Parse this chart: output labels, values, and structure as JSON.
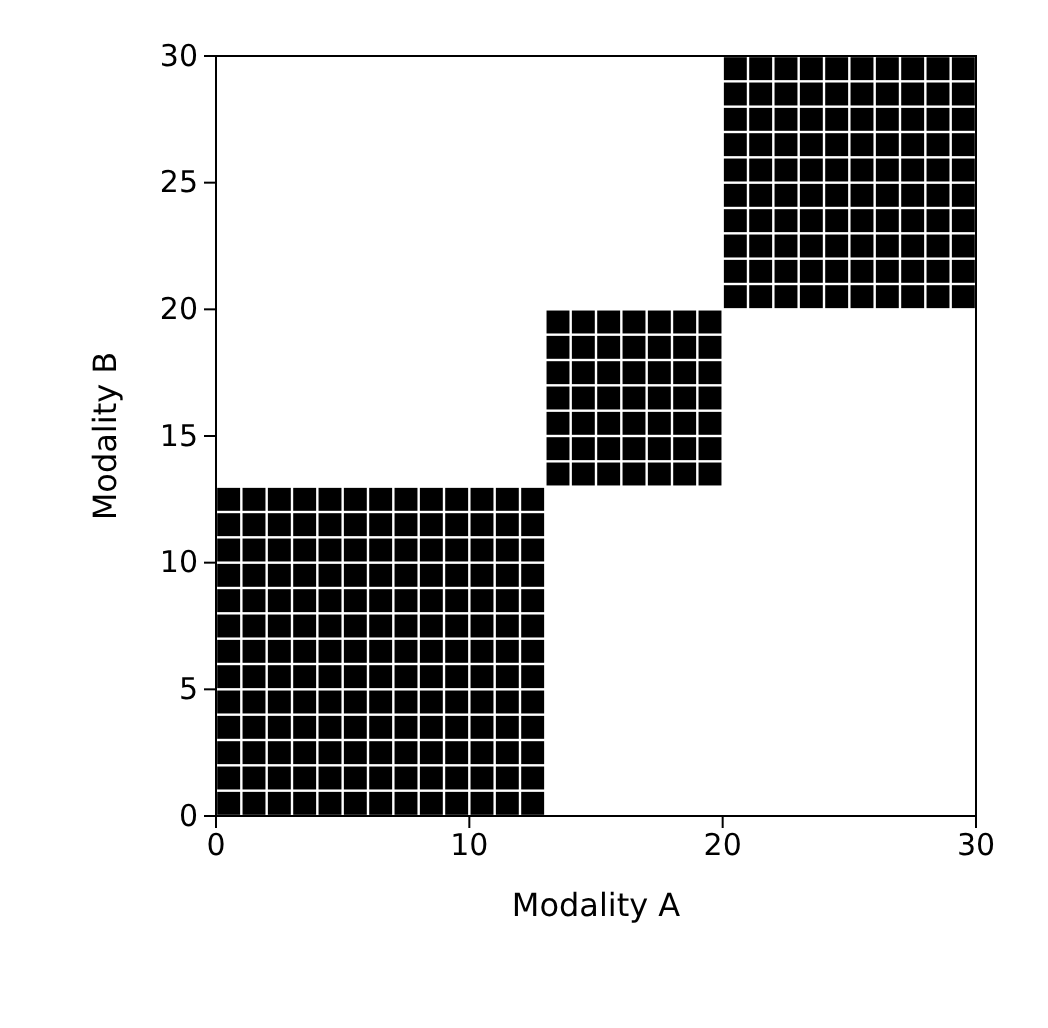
{
  "chart_data": {
    "type": "scatter",
    "xlabel": "Modality A",
    "ylabel": "Modality B",
    "marker": "square",
    "xlim": [
      0,
      30
    ],
    "xticks": [
      0,
      10,
      20,
      30
    ],
    "ylim": [
      0,
      30
    ],
    "yticks": [
      0,
      5,
      10,
      15,
      20,
      25,
      30
    ],
    "series": [
      {
        "color": "#000000",
        "x": [
          0.5,
          1.5,
          2.5,
          3.5,
          4.5,
          5.5,
          6.5,
          7.5,
          8.5,
          9.5,
          10.5,
          11.5,
          12.5,
          0.5,
          1.5,
          2.5,
          3.5,
          4.5,
          5.5,
          6.5,
          7.5,
          8.5,
          9.5,
          10.5,
          11.5,
          12.5,
          0.5,
          1.5,
          2.5,
          3.5,
          4.5,
          5.5,
          6.5,
          7.5,
          8.5,
          9.5,
          10.5,
          11.5,
          12.5,
          0.5,
          1.5,
          2.5,
          3.5,
          4.5,
          5.5,
          6.5,
          7.5,
          8.5,
          9.5,
          10.5,
          11.5,
          12.5,
          0.5,
          1.5,
          2.5,
          3.5,
          4.5,
          5.5,
          6.5,
          7.5,
          8.5,
          9.5,
          10.5,
          11.5,
          12.5,
          0.5,
          1.5,
          2.5,
          3.5,
          4.5,
          5.5,
          6.5,
          7.5,
          8.5,
          9.5,
          10.5,
          11.5,
          12.5,
          0.5,
          1.5,
          2.5,
          3.5,
          4.5,
          5.5,
          6.5,
          7.5,
          8.5,
          9.5,
          10.5,
          11.5,
          12.5,
          0.5,
          1.5,
          2.5,
          3.5,
          4.5,
          5.5,
          6.5,
          7.5,
          8.5,
          9.5,
          10.5,
          11.5,
          12.5,
          0.5,
          1.5,
          2.5,
          3.5,
          4.5,
          5.5,
          6.5,
          7.5,
          8.5,
          9.5,
          10.5,
          11.5,
          12.5,
          0.5,
          1.5,
          2.5,
          3.5,
          4.5,
          5.5,
          6.5,
          7.5,
          8.5,
          9.5,
          10.5,
          11.5,
          12.5,
          0.5,
          1.5,
          2.5,
          3.5,
          4.5,
          5.5,
          6.5,
          7.5,
          8.5,
          9.5,
          10.5,
          11.5,
          12.5,
          0.5,
          1.5,
          2.5,
          3.5,
          4.5,
          5.5,
          6.5,
          7.5,
          8.5,
          9.5,
          10.5,
          11.5,
          12.5,
          0.5,
          1.5,
          2.5,
          3.5,
          4.5,
          5.5,
          6.5,
          7.5,
          8.5,
          9.5,
          10.5,
          11.5,
          12.5
        ],
        "values": [
          0.5,
          0.5,
          0.5,
          0.5,
          0.5,
          0.5,
          0.5,
          0.5,
          0.5,
          0.5,
          0.5,
          0.5,
          0.5,
          1.5,
          1.5,
          1.5,
          1.5,
          1.5,
          1.5,
          1.5,
          1.5,
          1.5,
          1.5,
          1.5,
          1.5,
          1.5,
          2.5,
          2.5,
          2.5,
          2.5,
          2.5,
          2.5,
          2.5,
          2.5,
          2.5,
          2.5,
          2.5,
          2.5,
          2.5,
          3.5,
          3.5,
          3.5,
          3.5,
          3.5,
          3.5,
          3.5,
          3.5,
          3.5,
          3.5,
          3.5,
          3.5,
          3.5,
          4.5,
          4.5,
          4.5,
          4.5,
          4.5,
          4.5,
          4.5,
          4.5,
          4.5,
          4.5,
          4.5,
          4.5,
          4.5,
          5.5,
          5.5,
          5.5,
          5.5,
          5.5,
          5.5,
          5.5,
          5.5,
          5.5,
          5.5,
          5.5,
          5.5,
          5.5,
          6.5,
          6.5,
          6.5,
          6.5,
          6.5,
          6.5,
          6.5,
          6.5,
          6.5,
          6.5,
          6.5,
          6.5,
          6.5,
          7.5,
          7.5,
          7.5,
          7.5,
          7.5,
          7.5,
          7.5,
          7.5,
          7.5,
          7.5,
          7.5,
          7.5,
          7.5,
          8.5,
          8.5,
          8.5,
          8.5,
          8.5,
          8.5,
          8.5,
          8.5,
          8.5,
          8.5,
          8.5,
          8.5,
          8.5,
          9.5,
          9.5,
          9.5,
          9.5,
          9.5,
          9.5,
          9.5,
          9.5,
          9.5,
          9.5,
          9.5,
          9.5,
          9.5,
          10.5,
          10.5,
          10.5,
          10.5,
          10.5,
          10.5,
          10.5,
          10.5,
          10.5,
          10.5,
          10.5,
          10.5,
          10.5,
          11.5,
          11.5,
          11.5,
          11.5,
          11.5,
          11.5,
          11.5,
          11.5,
          11.5,
          11.5,
          11.5,
          11.5,
          11.5,
          12.5,
          12.5,
          12.5,
          12.5,
          12.5,
          12.5,
          12.5,
          12.5,
          12.5,
          12.5,
          12.5,
          12.5,
          12.5
        ]
      },
      {
        "color": "#000000",
        "x": [
          13.5,
          14.5,
          15.5,
          16.5,
          17.5,
          18.5,
          19.5,
          13.5,
          14.5,
          15.5,
          16.5,
          17.5,
          18.5,
          19.5,
          13.5,
          14.5,
          15.5,
          16.5,
          17.5,
          18.5,
          19.5,
          13.5,
          14.5,
          15.5,
          16.5,
          17.5,
          18.5,
          19.5,
          13.5,
          14.5,
          15.5,
          16.5,
          17.5,
          18.5,
          19.5,
          13.5,
          14.5,
          15.5,
          16.5,
          17.5,
          18.5,
          19.5,
          13.5,
          14.5,
          15.5,
          16.5,
          17.5,
          18.5,
          19.5
        ],
        "values": [
          13.5,
          13.5,
          13.5,
          13.5,
          13.5,
          13.5,
          13.5,
          14.5,
          14.5,
          14.5,
          14.5,
          14.5,
          14.5,
          14.5,
          15.5,
          15.5,
          15.5,
          15.5,
          15.5,
          15.5,
          15.5,
          16.5,
          16.5,
          16.5,
          16.5,
          16.5,
          16.5,
          16.5,
          17.5,
          17.5,
          17.5,
          17.5,
          17.5,
          17.5,
          17.5,
          18.5,
          18.5,
          18.5,
          18.5,
          18.5,
          18.5,
          18.5,
          19.5,
          19.5,
          19.5,
          19.5,
          19.5,
          19.5,
          19.5
        ]
      },
      {
        "color": "#000000",
        "x": [
          20.5,
          21.5,
          22.5,
          23.5,
          24.5,
          25.5,
          26.5,
          27.5,
          28.5,
          29.5,
          20.5,
          21.5,
          22.5,
          23.5,
          24.5,
          25.5,
          26.5,
          27.5,
          28.5,
          29.5,
          20.5,
          21.5,
          22.5,
          23.5,
          24.5,
          25.5,
          26.5,
          27.5,
          28.5,
          29.5,
          20.5,
          21.5,
          22.5,
          23.5,
          24.5,
          25.5,
          26.5,
          27.5,
          28.5,
          29.5,
          20.5,
          21.5,
          22.5,
          23.5,
          24.5,
          25.5,
          26.5,
          27.5,
          28.5,
          29.5,
          20.5,
          21.5,
          22.5,
          23.5,
          24.5,
          25.5,
          26.5,
          27.5,
          28.5,
          29.5,
          20.5,
          21.5,
          22.5,
          23.5,
          24.5,
          25.5,
          26.5,
          27.5,
          28.5,
          29.5,
          20.5,
          21.5,
          22.5,
          23.5,
          24.5,
          25.5,
          26.5,
          27.5,
          28.5,
          29.5,
          20.5,
          21.5,
          22.5,
          23.5,
          24.5,
          25.5,
          26.5,
          27.5,
          28.5,
          29.5,
          20.5,
          21.5,
          22.5,
          23.5,
          24.5,
          25.5,
          26.5,
          27.5,
          28.5,
          29.5
        ],
        "values": [
          20.5,
          20.5,
          20.5,
          20.5,
          20.5,
          20.5,
          20.5,
          20.5,
          20.5,
          20.5,
          21.5,
          21.5,
          21.5,
          21.5,
          21.5,
          21.5,
          21.5,
          21.5,
          21.5,
          21.5,
          22.5,
          22.5,
          22.5,
          22.5,
          22.5,
          22.5,
          22.5,
          22.5,
          22.5,
          22.5,
          23.5,
          23.5,
          23.5,
          23.5,
          23.5,
          23.5,
          23.5,
          23.5,
          23.5,
          23.5,
          24.5,
          24.5,
          24.5,
          24.5,
          24.5,
          24.5,
          24.5,
          24.5,
          24.5,
          24.5,
          25.5,
          25.5,
          25.5,
          25.5,
          25.5,
          25.5,
          25.5,
          25.5,
          25.5,
          25.5,
          26.5,
          26.5,
          26.5,
          26.5,
          26.5,
          26.5,
          26.5,
          26.5,
          26.5,
          26.5,
          27.5,
          27.5,
          27.5,
          27.5,
          27.5,
          27.5,
          27.5,
          27.5,
          27.5,
          27.5,
          28.5,
          28.5,
          28.5,
          28.5,
          28.5,
          28.5,
          28.5,
          28.5,
          28.5,
          28.5,
          29.5,
          29.5,
          29.5,
          29.5,
          29.5,
          29.5,
          29.5,
          29.5,
          29.5,
          29.5
        ]
      }
    ]
  }
}
